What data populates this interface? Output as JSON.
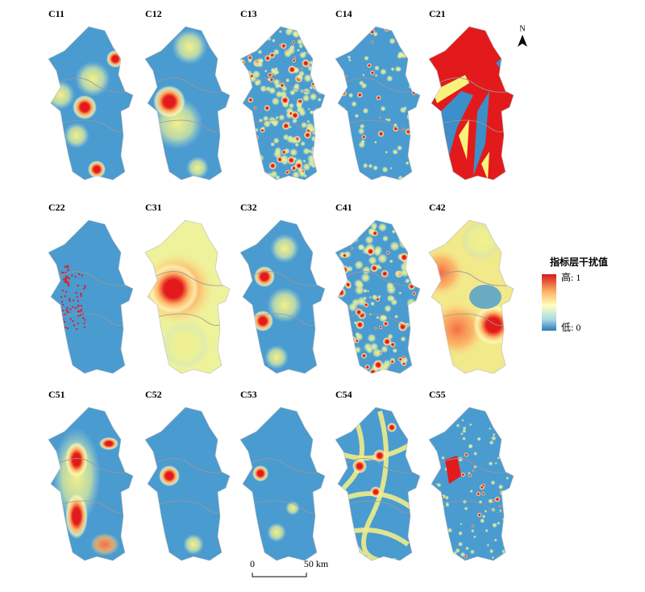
{
  "panels": [
    {
      "label": "C11"
    },
    {
      "label": "C12"
    },
    {
      "label": "C13"
    },
    {
      "label": "C14"
    },
    {
      "label": "C21"
    },
    {
      "label": "C22"
    },
    {
      "label": "C31"
    },
    {
      "label": "C32"
    },
    {
      "label": "C41"
    },
    {
      "label": "C42"
    },
    {
      "label": "C51"
    },
    {
      "label": "C52"
    },
    {
      "label": "C53"
    },
    {
      "label": "C54"
    },
    {
      "label": "C55"
    }
  ],
  "legend": {
    "title": "指标层干扰值",
    "high": "高: 1",
    "low": "低: 0"
  },
  "north": "N",
  "scale_bar": {
    "start": "0",
    "end": "50 km"
  }
}
